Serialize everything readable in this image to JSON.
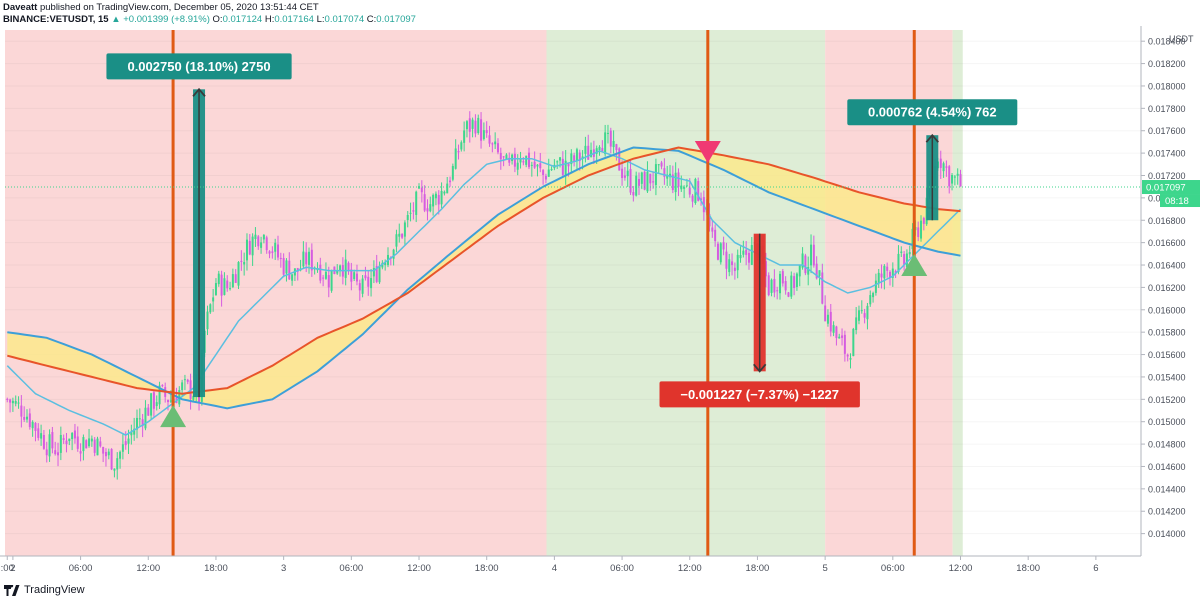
{
  "header": {
    "author": "Daveatt",
    "published": "published on TradingView.com, December 05, 2020 13:51:44 CET",
    "symbol": "BINANCE:VETUSDT, 15",
    "change": "▲ +0.001399 (+8.91%)",
    "open_label": "O:",
    "open": "0.017124",
    "high_label": "H:",
    "high": "0.017164",
    "low_label": "L:",
    "low": "0.017074",
    "close_label": "C:",
    "close": "0.017097"
  },
  "footer": {
    "brand": "TradingView"
  },
  "chart_data": {
    "type": "candlestick",
    "ylabel": "USDT",
    "ylim": [
      0.0138,
      0.0185
    ],
    "y_ticks": [
      "0.014000",
      "0.014200",
      "0.014400",
      "0.014600",
      "0.014800",
      "0.015000",
      "0.015200",
      "0.015400",
      "0.015600",
      "0.015800",
      "0.016000",
      "0.016200",
      "0.016400",
      "0.016600",
      "0.016800",
      "0.017000",
      "0.017200",
      "0.017400",
      "0.017600",
      "0.017800",
      "0.018000",
      "0.018200",
      "0.018400"
    ],
    "x_ticks": [
      {
        "label": ":00",
        "t": -0.5
      },
      {
        "label": "2",
        "t": 0
      },
      {
        "label": "06:00",
        "t": 6
      },
      {
        "label": "12:00",
        "t": 12
      },
      {
        "label": "18:00",
        "t": 18
      },
      {
        "label": "3",
        "t": 24
      },
      {
        "label": "06:00",
        "t": 30
      },
      {
        "label": "12:00",
        "t": 36
      },
      {
        "label": "18:00",
        "t": 42
      },
      {
        "label": "4",
        "t": 48
      },
      {
        "label": "06:00",
        "t": 54
      },
      {
        "label": "12:00",
        "t": 60
      },
      {
        "label": "18:00",
        "t": 66
      },
      {
        "label": "5",
        "t": 72
      },
      {
        "label": "06:00",
        "t": 78
      },
      {
        "label": "12:00",
        "t": 84
      },
      {
        "label": "18:00",
        "t": 90
      },
      {
        "label": "6",
        "t": 96
      }
    ],
    "xlim": [
      -0.7,
      100
    ],
    "last_t": 84.2,
    "last_price": "0.017097",
    "countdown": "08:18",
    "backgrounds": [
      {
        "from": -0.7,
        "to": 47.3,
        "color": "#fbd7d7"
      },
      {
        "from": 47.3,
        "to": 72.0,
        "color": "#deedd6"
      },
      {
        "from": 72.0,
        "to": 83.3,
        "color": "#fbd7d7"
      },
      {
        "from": 83.3,
        "to": 84.2,
        "color": "#deedd6"
      }
    ],
    "signal_lines": [
      14.2,
      61.6,
      79.9
    ],
    "signals": [
      {
        "type": "buy",
        "t": 14.2,
        "price": 0.01505
      },
      {
        "type": "sell",
        "t": 61.6,
        "price": 0.01741
      },
      {
        "type": "buy",
        "t": 79.9,
        "price": 0.0164
      }
    ],
    "measures": [
      {
        "t": 16.5,
        "from": 0.01522,
        "to": 0.01797,
        "color": "#1a8f86",
        "label": "0.002750 (18.10%) 2750",
        "label_above": true
      },
      {
        "t": 66.2,
        "from": 0.01668,
        "to": 0.01545,
        "color": "#e0342c",
        "label": "−0.001227 (−7.37%) −1227",
        "label_above": false
      },
      {
        "t": 81.5,
        "from": 0.0168,
        "to": 0.01756,
        "color": "#1a8f86",
        "label": "0.000762 (4.54%) 762",
        "label_above": true
      }
    ],
    "price_path": [
      [
        -0.5,
        0.0152
      ],
      [
        1,
        0.0151
      ],
      [
        2,
        0.01495
      ],
      [
        3,
        0.0148
      ],
      [
        4,
        0.01475
      ],
      [
        5,
        0.0149
      ],
      [
        6,
        0.01482
      ],
      [
        7,
        0.01485
      ],
      [
        8,
        0.01472
      ],
      [
        9,
        0.01465
      ],
      [
        10,
        0.0148
      ],
      [
        11,
        0.015
      ],
      [
        12,
        0.01512
      ],
      [
        13,
        0.01525
      ],
      [
        14,
        0.0152
      ],
      [
        15,
        0.0153
      ],
      [
        16,
        0.01528
      ],
      [
        16.5,
        0.01522
      ],
      [
        17,
        0.0158
      ],
      [
        18,
        0.01625
      ],
      [
        19,
        0.0162
      ],
      [
        20,
        0.0164
      ],
      [
        21,
        0.0166
      ],
      [
        22,
        0.0167
      ],
      [
        23,
        0.01655
      ],
      [
        24,
        0.0164
      ],
      [
        25,
        0.01632
      ],
      [
        26,
        0.01645
      ],
      [
        27,
        0.0164
      ],
      [
        28,
        0.01628
      ],
      [
        29,
        0.01645
      ],
      [
        30,
        0.01625
      ],
      [
        31,
        0.01618
      ],
      [
        32,
        0.0163
      ],
      [
        33,
        0.0165
      ],
      [
        34,
        0.0166
      ],
      [
        35,
        0.0168
      ],
      [
        36,
        0.017
      ],
      [
        37,
        0.01695
      ],
      [
        38,
        0.01705
      ],
      [
        39,
        0.01725
      ],
      [
        40,
        0.0176
      ],
      [
        41,
        0.01768
      ],
      [
        42,
        0.0175
      ],
      [
        43,
        0.01738
      ],
      [
        44,
        0.01725
      ],
      [
        45,
        0.0174
      ],
      [
        46,
        0.0173
      ],
      [
        47,
        0.0172
      ],
      [
        48,
        0.0173
      ],
      [
        49,
        0.01728
      ],
      [
        50,
        0.01735
      ],
      [
        51,
        0.0174
      ],
      [
        52,
        0.01755
      ],
      [
        53,
        0.01745
      ],
      [
        54,
        0.01725
      ],
      [
        55,
        0.0171
      ],
      [
        56,
        0.01715
      ],
      [
        57,
        0.0172
      ],
      [
        58,
        0.01718
      ],
      [
        59,
        0.01712
      ],
      [
        60,
        0.01708
      ],
      [
        61,
        0.01705
      ],
      [
        62,
        0.0166
      ],
      [
        63,
        0.01648
      ],
      [
        64,
        0.01635
      ],
      [
        65,
        0.0165
      ],
      [
        66,
        0.01655
      ],
      [
        67,
        0.0162
      ],
      [
        68,
        0.0163
      ],
      [
        69,
        0.0162
      ],
      [
        70,
        0.0164
      ],
      [
        71,
        0.0165
      ],
      [
        72,
        0.016
      ],
      [
        73,
        0.01575
      ],
      [
        74,
        0.0156
      ],
      [
        75,
        0.0159
      ],
      [
        76,
        0.01615
      ],
      [
        77,
        0.0163
      ],
      [
        78,
        0.0164
      ],
      [
        79,
        0.01642
      ],
      [
        80,
        0.01668
      ],
      [
        81,
        0.0169
      ],
      [
        82,
        0.0174
      ],
      [
        83,
        0.0172
      ],
      [
        84,
        0.01712
      ],
      [
        84.2,
        0.0171
      ]
    ],
    "fast_ma": [
      [
        -0.5,
        0.0155
      ],
      [
        2,
        0.01525
      ],
      [
        5,
        0.0151
      ],
      [
        8,
        0.01498
      ],
      [
        10,
        0.01488
      ],
      [
        12,
        0.015
      ],
      [
        14,
        0.01515
      ],
      [
        16,
        0.0153
      ],
      [
        18,
        0.0156
      ],
      [
        20,
        0.0159
      ],
      [
        22,
        0.0161
      ],
      [
        24,
        0.0163
      ],
      [
        26,
        0.01638
      ],
      [
        28,
        0.01635
      ],
      [
        30,
        0.01635
      ],
      [
        32,
        0.01635
      ],
      [
        34,
        0.0165
      ],
      [
        36,
        0.0167
      ],
      [
        38,
        0.0169
      ],
      [
        40,
        0.01712
      ],
      [
        42,
        0.0173
      ],
      [
        44,
        0.01735
      ],
      [
        46,
        0.01735
      ],
      [
        48,
        0.01728
      ],
      [
        50,
        0.01733
      ],
      [
        52,
        0.01742
      ],
      [
        54,
        0.01735
      ],
      [
        56,
        0.01725
      ],
      [
        58,
        0.0172
      ],
      [
        60,
        0.01715
      ],
      [
        62,
        0.0168
      ],
      [
        64,
        0.0166
      ],
      [
        66,
        0.0165
      ],
      [
        68,
        0.0164
      ],
      [
        70,
        0.0164
      ],
      [
        72,
        0.01625
      ],
      [
        74,
        0.01615
      ],
      [
        76,
        0.0162
      ],
      [
        78,
        0.0163
      ],
      [
        80,
        0.0165
      ],
      [
        82,
        0.0167
      ],
      [
        84,
        0.0169
      ],
      [
        84.2,
        0.0169
      ]
    ],
    "slow_ma": [
      [
        -0.5,
        0.0158
      ],
      [
        3,
        0.01575
      ],
      [
        7,
        0.0156
      ],
      [
        11,
        0.0154
      ],
      [
        15,
        0.0152
      ],
      [
        19,
        0.01512
      ],
      [
        23,
        0.0152
      ],
      [
        27,
        0.01545
      ],
      [
        31,
        0.01578
      ],
      [
        35,
        0.01618
      ],
      [
        39,
        0.01652
      ],
      [
        43,
        0.01685
      ],
      [
        47,
        0.0171
      ],
      [
        51,
        0.0173
      ],
      [
        55,
        0.01745
      ],
      [
        59,
        0.01742
      ],
      [
        63,
        0.01725
      ],
      [
        67,
        0.01705
      ],
      [
        71,
        0.0169
      ],
      [
        75,
        0.01675
      ],
      [
        79,
        0.0166
      ],
      [
        82,
        0.01652
      ],
      [
        84.2,
        0.01648
      ]
    ],
    "base_ma": [
      [
        -0.5,
        0.01559
      ],
      [
        3,
        0.0155
      ],
      [
        7,
        0.0154
      ],
      [
        11,
        0.0153
      ],
      [
        15,
        0.01525
      ],
      [
        19,
        0.0153
      ],
      [
        23,
        0.0155
      ],
      [
        27,
        0.01575
      ],
      [
        31,
        0.01592
      ],
      [
        35,
        0.01615
      ],
      [
        39,
        0.01645
      ],
      [
        43,
        0.01675
      ],
      [
        47,
        0.017
      ],
      [
        51,
        0.0172
      ],
      [
        55,
        0.01735
      ],
      [
        59,
        0.01745
      ],
      [
        63,
        0.01738
      ],
      [
        67,
        0.0173
      ],
      [
        71,
        0.01718
      ],
      [
        75,
        0.01705
      ],
      [
        79,
        0.01695
      ],
      [
        82,
        0.0169
      ],
      [
        84.2,
        0.01688
      ]
    ],
    "series": [
      {
        "name": "",
        "color": "#5bbfe0"
      },
      {
        "name": "",
        "color": "#3d9fd8"
      },
      {
        "name": "",
        "color": "#e8542a"
      }
    ]
  },
  "colors": {
    "candle_up": "#3dd68c",
    "candle_down": "#d65ce0",
    "signal_line": "#e05a14",
    "buy": "#6bbd75",
    "sell": "#f03a73",
    "fill": "#fbe98c"
  }
}
